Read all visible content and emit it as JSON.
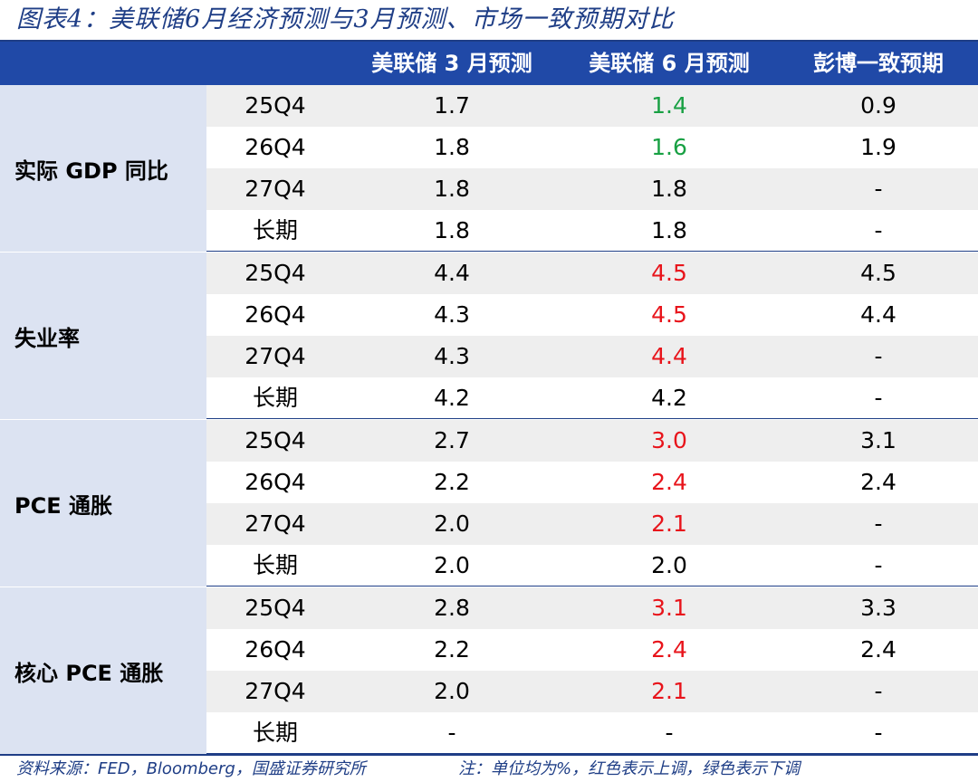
{
  "title": "图表4：美联储6月经济预测与3月预测、市场一致预期对比",
  "header": {
    "blank": "",
    "mar": "美联储 3 月预测",
    "jun": "美联储 6 月预测",
    "bbg": "彭博一致预期"
  },
  "groups": [
    {
      "label": "实际 GDP 同比",
      "rows": [
        {
          "period": "25Q4",
          "mar": "1.7",
          "jun": "1.4",
          "jun_trend": "down",
          "bbg": "0.9"
        },
        {
          "period": "26Q4",
          "mar": "1.8",
          "jun": "1.6",
          "jun_trend": "down",
          "bbg": "1.9"
        },
        {
          "period": "27Q4",
          "mar": "1.8",
          "jun": "1.8",
          "jun_trend": "flat",
          "bbg": "-"
        },
        {
          "period": "长期",
          "mar": "1.8",
          "jun": "1.8",
          "jun_trend": "flat",
          "bbg": "-"
        }
      ]
    },
    {
      "label": "失业率",
      "rows": [
        {
          "period": "25Q4",
          "mar": "4.4",
          "jun": "4.5",
          "jun_trend": "up",
          "bbg": "4.5"
        },
        {
          "period": "26Q4",
          "mar": "4.3",
          "jun": "4.5",
          "jun_trend": "up",
          "bbg": "4.4"
        },
        {
          "period": "27Q4",
          "mar": "4.3",
          "jun": "4.4",
          "jun_trend": "up",
          "bbg": "-"
        },
        {
          "period": "长期",
          "mar": "4.2",
          "jun": "4.2",
          "jun_trend": "flat",
          "bbg": "-"
        }
      ]
    },
    {
      "label": "PCE 通胀",
      "rows": [
        {
          "period": "25Q4",
          "mar": "2.7",
          "jun": "3.0",
          "jun_trend": "up",
          "bbg": "3.1"
        },
        {
          "period": "26Q4",
          "mar": "2.2",
          "jun": "2.4",
          "jun_trend": "up",
          "bbg": "2.4"
        },
        {
          "period": "27Q4",
          "mar": "2.0",
          "jun": "2.1",
          "jun_trend": "up",
          "bbg": "-"
        },
        {
          "period": "长期",
          "mar": "2.0",
          "jun": "2.0",
          "jun_trend": "flat",
          "bbg": "-"
        }
      ]
    },
    {
      "label": "核心 PCE 通胀",
      "rows": [
        {
          "period": "25Q4",
          "mar": "2.8",
          "jun": "3.1",
          "jun_trend": "up",
          "bbg": "3.3"
        },
        {
          "period": "26Q4",
          "mar": "2.2",
          "jun": "2.4",
          "jun_trend": "up",
          "bbg": "2.4"
        },
        {
          "period": "27Q4",
          "mar": "2.0",
          "jun": "2.1",
          "jun_trend": "up",
          "bbg": "-"
        },
        {
          "period": "长期",
          "mar": "-",
          "jun": "-",
          "jun_trend": "flat",
          "bbg": "-"
        }
      ]
    }
  ],
  "colors": {
    "header_bg": "#2049a7",
    "label_bg": "#dce3f2",
    "row_shade": "#eeeeee",
    "up": "#e8141b",
    "down": "#18a043",
    "accent": "#1f3e86"
  },
  "footer": {
    "source": "资料来源：FED，Bloomberg，国盛证券研究所",
    "note": "注：单位均为%，红色表示上调，绿色表示下调"
  }
}
